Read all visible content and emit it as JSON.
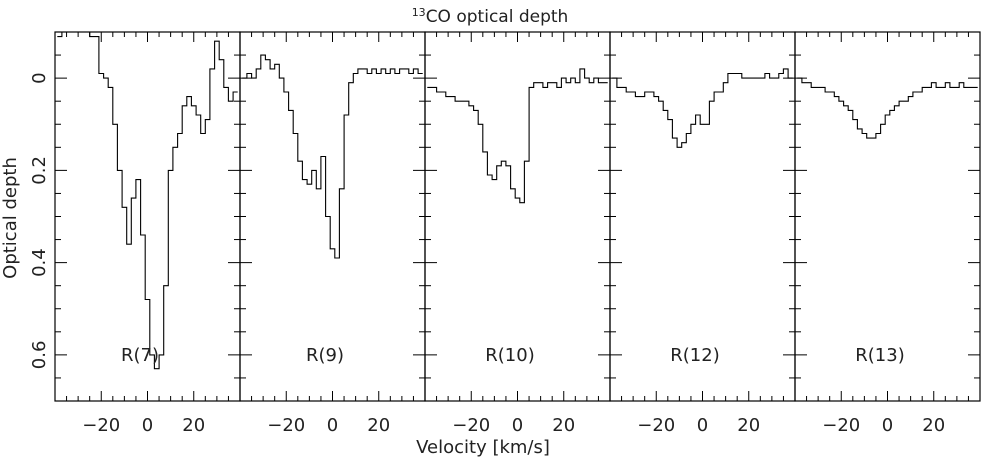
{
  "chart_data": {
    "type": "line",
    "title": "optical depth",
    "title_superscript": "13",
    "title_species": "CO",
    "xlabel": "Velocity [km/s]",
    "ylabel": "Optical depth",
    "y_inverted": true,
    "ylim": [
      0.7,
      -0.1
    ],
    "xlim": [
      -40,
      40
    ],
    "x_ticks": [
      -20,
      0,
      20
    ],
    "x_tick_labels": [
      "−20",
      "0",
      "20"
    ],
    "y_ticks": [
      0,
      0.2,
      0.4,
      0.6
    ],
    "y_tick_labels": [
      "0",
      "0.2",
      "0.4",
      "0.6"
    ],
    "grid": false,
    "step_width": 2,
    "panels": [
      {
        "name": "R(7)",
        "x": [
          -38,
          -36,
          -34,
          -32,
          -30,
          -28,
          -26,
          -24,
          -22,
          -20,
          -18,
          -16,
          -14,
          -12,
          -10,
          -8,
          -6,
          -4,
          -2,
          0,
          2,
          4,
          6,
          8,
          10,
          12,
          14,
          16,
          18,
          20,
          22,
          24,
          26,
          28,
          30,
          32,
          34,
          36,
          38
        ],
        "y": [
          -0.09,
          -0.1,
          -0.1,
          -0.1,
          -0.1,
          -0.1,
          -0.1,
          -0.09,
          -0.09,
          -0.01,
          0.0,
          0.02,
          0.1,
          0.2,
          0.28,
          0.36,
          0.26,
          0.22,
          0.34,
          0.48,
          0.6,
          0.63,
          0.6,
          0.45,
          0.2,
          0.15,
          0.12,
          0.06,
          0.04,
          0.06,
          0.08,
          0.12,
          0.09,
          -0.02,
          -0.08,
          -0.04,
          0.02,
          0.05,
          0.03
        ]
      },
      {
        "name": "R(9)",
        "x": [
          -38,
          -36,
          -34,
          -32,
          -30,
          -28,
          -26,
          -24,
          -22,
          -20,
          -18,
          -16,
          -14,
          -12,
          -10,
          -8,
          -6,
          -4,
          -2,
          0,
          2,
          4,
          6,
          8,
          10,
          12,
          14,
          16,
          18,
          20,
          22,
          24,
          26,
          28,
          30,
          32,
          34,
          36,
          38
        ],
        "y": [
          0.0,
          -0.01,
          0.0,
          -0.02,
          -0.05,
          -0.04,
          -0.02,
          -0.03,
          0.0,
          0.03,
          0.07,
          0.12,
          0.18,
          0.22,
          0.23,
          0.2,
          0.24,
          0.17,
          0.3,
          0.37,
          0.39,
          0.24,
          0.08,
          0.01,
          -0.01,
          -0.02,
          -0.02,
          -0.01,
          -0.02,
          -0.01,
          -0.02,
          -0.01,
          -0.02,
          -0.01,
          -0.02,
          -0.02,
          -0.01,
          -0.02,
          -0.01
        ]
      },
      {
        "name": "R(10)",
        "x": [
          -38,
          -36,
          -34,
          -32,
          -30,
          -28,
          -26,
          -24,
          -22,
          -20,
          -18,
          -16,
          -14,
          -12,
          -10,
          -8,
          -6,
          -4,
          -2,
          0,
          2,
          4,
          6,
          8,
          10,
          12,
          14,
          16,
          18,
          20,
          22,
          24,
          26,
          28,
          30,
          32,
          34,
          36,
          38
        ],
        "y": [
          0.02,
          0.02,
          0.03,
          0.03,
          0.04,
          0.04,
          0.05,
          0.05,
          0.05,
          0.06,
          0.07,
          0.1,
          0.16,
          0.21,
          0.22,
          0.19,
          0.18,
          0.19,
          0.24,
          0.26,
          0.27,
          0.18,
          0.02,
          0.01,
          0.01,
          0.02,
          0.01,
          0.01,
          0.02,
          0.0,
          0.01,
          0.0,
          0.01,
          -0.02,
          0.0,
          0.01,
          0.0,
          0.01,
          0.01
        ]
      },
      {
        "name": "R(12)",
        "x": [
          -38,
          -36,
          -34,
          -32,
          -30,
          -28,
          -26,
          -24,
          -22,
          -20,
          -18,
          -16,
          -14,
          -12,
          -10,
          -8,
          -6,
          -4,
          -2,
          0,
          2,
          4,
          6,
          8,
          10,
          12,
          14,
          16,
          18,
          20,
          22,
          24,
          26,
          28,
          30,
          32,
          34,
          36,
          38
        ],
        "y": [
          0.0,
          0.02,
          0.02,
          0.03,
          0.03,
          0.04,
          0.04,
          0.03,
          0.03,
          0.04,
          0.05,
          0.07,
          0.09,
          0.13,
          0.15,
          0.14,
          0.12,
          0.1,
          0.08,
          0.1,
          0.1,
          0.05,
          0.03,
          0.03,
          0.01,
          -0.01,
          -0.01,
          -0.01,
          0.0,
          0.0,
          0.0,
          0.0,
          0.0,
          -0.01,
          0.0,
          0.0,
          -0.01,
          -0.02,
          0.0
        ]
      },
      {
        "name": "R(13)",
        "x": [
          -38,
          -36,
          -34,
          -32,
          -30,
          -28,
          -26,
          -24,
          -22,
          -20,
          -18,
          -16,
          -14,
          -12,
          -10,
          -8,
          -6,
          -4,
          -2,
          0,
          2,
          4,
          6,
          8,
          10,
          12,
          14,
          16,
          18,
          20,
          22,
          24,
          26,
          28,
          30,
          32,
          34,
          36,
          38
        ],
        "y": [
          0.0,
          0.01,
          0.01,
          0.02,
          0.02,
          0.02,
          0.03,
          0.03,
          0.04,
          0.05,
          0.06,
          0.07,
          0.09,
          0.11,
          0.12,
          0.13,
          0.13,
          0.12,
          0.1,
          0.08,
          0.07,
          0.06,
          0.05,
          0.05,
          0.04,
          0.03,
          0.03,
          0.02,
          0.02,
          0.01,
          0.02,
          0.02,
          0.01,
          0.02,
          0.02,
          0.01,
          0.02,
          0.02,
          0.02
        ]
      }
    ]
  }
}
